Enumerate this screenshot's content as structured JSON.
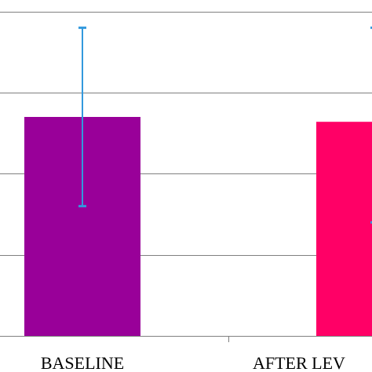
{
  "chart_data": {
    "type": "bar",
    "categories": [
      "BASELINE",
      "AFTER LEV"
    ],
    "values": [
      2.7,
      2.64
    ],
    "error_bars": [
      {
        "low": 1.6,
        "high": 3.8
      },
      {
        "low": 1.4,
        "high": 3.8
      }
    ],
    "ylim": [
      0,
      4.2
    ],
    "gridlines": [
      1,
      2,
      3,
      4
    ],
    "grid": true,
    "title": "",
    "xlabel": "",
    "ylabel": "",
    "colors": {
      "bars": [
        "#990099",
        "#ff0066"
      ],
      "error_bar": "#3399dd",
      "grid": "#808080",
      "axis": "#808080"
    }
  }
}
